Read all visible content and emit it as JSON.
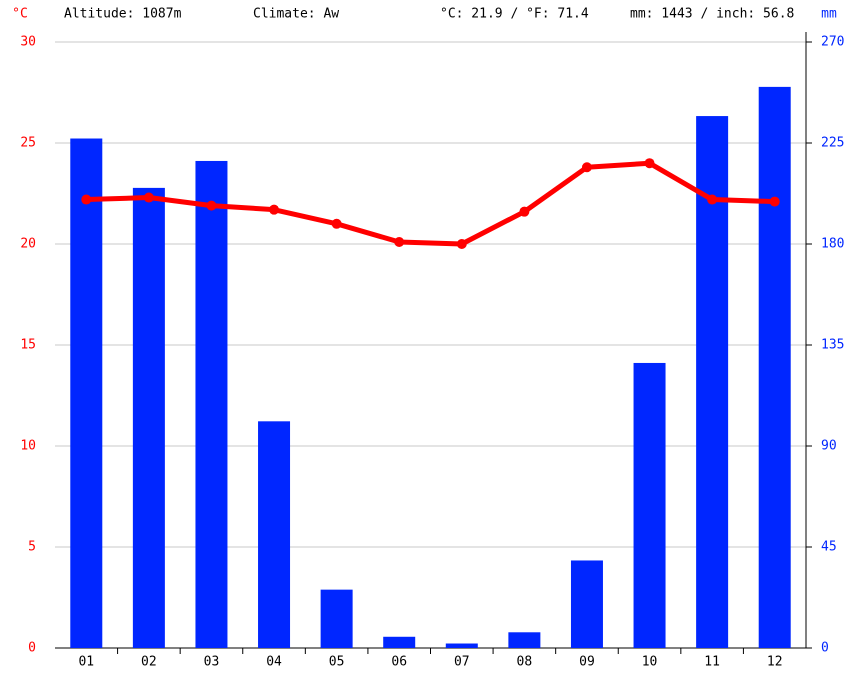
{
  "chart_data": {
    "type": "bar-line",
    "y_label": "°C",
    "y2_label": "mm",
    "header": [
      "Altitude: 1087m",
      "Climate: Aw",
      "°C: 21.9 / °F: 71.4",
      "mm: 1443 / inch: 56.8"
    ],
    "categories": [
      "01",
      "02",
      "03",
      "04",
      "05",
      "06",
      "07",
      "08",
      "09",
      "10",
      "11",
      "12"
    ],
    "series": [
      {
        "type": "bar",
        "axis": "y2",
        "color": "#0026ff",
        "values": [
          227,
          205,
          217,
          101,
          26,
          5,
          2,
          7,
          39,
          127,
          237,
          250
        ]
      },
      {
        "type": "line",
        "axis": "y",
        "color": "#ff0000",
        "values": [
          22.2,
          22.3,
          21.9,
          21.7,
          21.0,
          20.1,
          20.0,
          21.6,
          23.8,
          24.0,
          22.2,
          22.1
        ]
      }
    ],
    "ylim": [
      0,
      30
    ],
    "yticks": [
      0,
      5,
      10,
      15,
      20,
      25,
      30
    ],
    "y2lim": [
      0,
      270
    ],
    "y2ticks": [
      0,
      45,
      90,
      135,
      180,
      225,
      270
    ],
    "grid": true
  }
}
